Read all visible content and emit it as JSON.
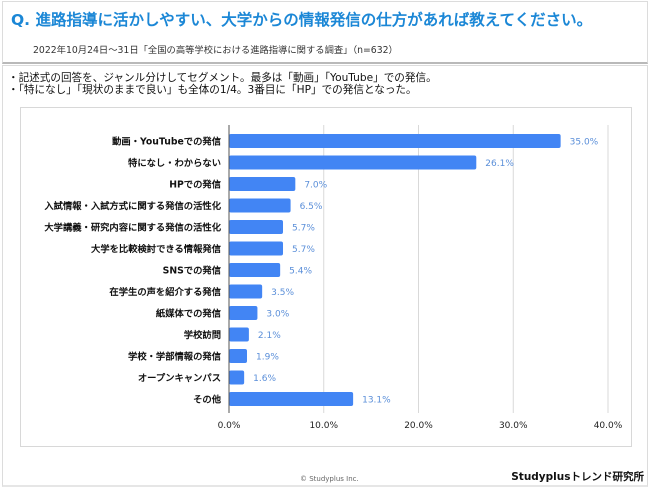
{
  "header": {
    "title": "Q. 進路指導に活かしやすい、大学からの情報発信の仕方があれば教えてください。",
    "subtitle": "2022年10月24日～31日「全国の高等学校における進路指導に関する調査」（n=632）"
  },
  "notes": [
    "・記述式の回答を、ジャンル分けしてセグメント。最多は「動画」「YouTube」での発信。",
    "・「特になし」「現状のままで良い」も全体の1/4。3番目に「HP」での発信となった。"
  ],
  "footer": {
    "copyright": "© Studyplus Inc.",
    "brand": "Studyplusトレンド研究所"
  },
  "colors": {
    "title": "#1b87d6",
    "bar": "#4285f4",
    "data_label": "#5b8fd9",
    "grid": "#d9d9d9",
    "axis": "#555555"
  },
  "chart_data": {
    "type": "bar",
    "orientation": "horizontal",
    "categories": [
      "動画・YouTubeでの発信",
      "特になし・わからない",
      "HPでの発信",
      "入試情報・入試方式に関する発信の活性化",
      "大学講義・研究内容に関する発信の活性化",
      "大学を比較検討できる情報発信",
      "SNSでの発信",
      "在学生の声を紹介する発信",
      "紙媒体での発信",
      "学校訪問",
      "学校・学部情報の発信",
      "オープンキャンパス",
      "その他"
    ],
    "values": [
      35.0,
      26.1,
      7.0,
      6.5,
      5.7,
      5.7,
      5.4,
      3.5,
      3.0,
      2.1,
      1.9,
      1.6,
      13.1
    ],
    "data_labels": [
      "35.0%",
      "26.1%",
      "7.0%",
      "6.5%",
      "5.7%",
      "5.7%",
      "5.4%",
      "3.5%",
      "3.0%",
      "2.1%",
      "1.9%",
      "1.6%",
      "13.1%"
    ],
    "xlim": [
      0,
      40
    ],
    "xticks": [
      0,
      10,
      20,
      30,
      40
    ],
    "xtick_labels": [
      "0.0%",
      "10.0%",
      "20.0%",
      "30.0%",
      "40.0%"
    ],
    "grid": true,
    "legend": "none",
    "title": "",
    "xlabel": "",
    "ylabel": ""
  }
}
